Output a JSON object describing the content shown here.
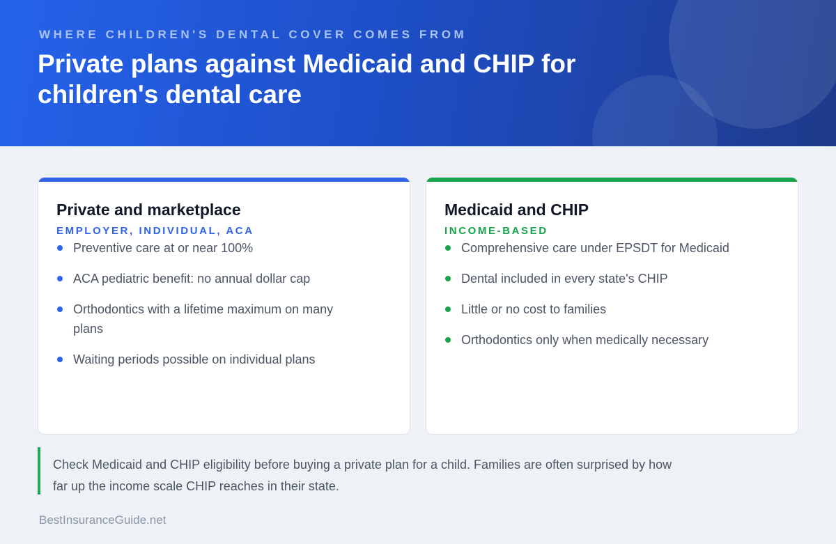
{
  "header": {
    "eyebrow": "WHERE CHILDREN'S DENTAL COVER COMES FROM",
    "title": "Private plans against Medicaid and CHIP for children's dental care"
  },
  "cards": [
    {
      "title": "Private and marketplace",
      "subtitle": "EMPLOYER, INDIVIDUAL, ACA",
      "accent": "#2f63e8",
      "items": [
        "Preventive care at or near 100%",
        "ACA pediatric benefit: no annual dollar cap",
        "Orthodontics with a lifetime maximum on many plans",
        "Waiting periods possible on individual plans"
      ]
    },
    {
      "title": "Medicaid and CHIP",
      "subtitle": "INCOME-BASED",
      "accent": "#16a34a",
      "items": [
        "Comprehensive care under EPSDT for Medicaid",
        "Dental included in every state's CHIP",
        "Little or no cost to families",
        "Orthodontics only when medically necessary"
      ]
    }
  ],
  "note": "Check Medicaid and CHIP eligibility before buying a private plan for a child. Families are often surprised by how far up the income scale CHIP reaches in their state.",
  "footer": "BestInsuranceGuide.net"
}
